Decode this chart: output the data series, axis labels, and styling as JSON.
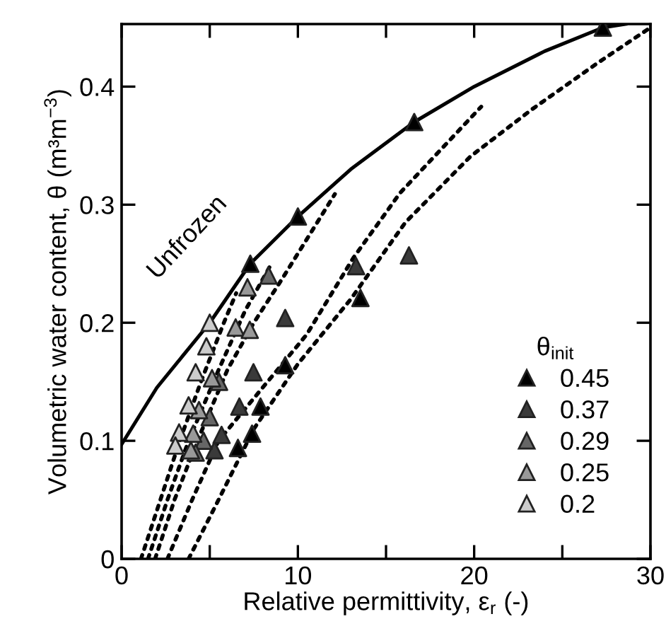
{
  "chart_data": {
    "type": "scatter",
    "xlabel": "Relative permittivity, ε$_{r}$ (-)",
    "ylabel": "Volumetric water content, θ (m³m$^{−3}$)",
    "legend_title": "θ$_{init}$",
    "xlim": [
      0,
      30
    ],
    "ylim": [
      0,
      0.453
    ],
    "xticks": [
      0,
      {
        "value": 5,
        "label": null
      },
      10,
      {
        "value": 15,
        "label": null
      },
      20,
      {
        "value": 25,
        "label": null
      },
      30
    ],
    "yticks": [
      0,
      0.1,
      0.2,
      0.3,
      0.4
    ],
    "grid": false,
    "legend": "lower right",
    "marker": "triangle",
    "annotations": [
      "Unfrozen"
    ],
    "series": [
      {
        "type": "line",
        "marker": "none",
        "color": "#000000",
        "line_style": "solid",
        "x": [
          0,
          2,
          5,
          7.3,
          10,
          13,
          16.6,
          20,
          24,
          27.3,
          28.6
        ],
        "values": [
          0.097,
          0.145,
          0.2,
          0.25,
          0.29,
          0.33,
          0.37,
          0.4,
          0.43,
          0.45,
          0.453
        ]
      },
      {
        "type": "line",
        "color": "#000000",
        "line_style": "dotted",
        "marker": "none",
        "x": [
          3.8,
          5.5,
          7.5,
          10,
          13,
          16.1,
          19.8,
          23.3,
          27,
          30
        ],
        "values": [
          0,
          0.05,
          0.11,
          0.165,
          0.22,
          0.285,
          0.341,
          0.381,
          0.42,
          0.45
        ]
      },
      {
        "type": "line",
        "color": "#000000",
        "line_style": "dotted",
        "marker": "none",
        "x": [
          2.6,
          4,
          5.5,
          8,
          10.5,
          13.15,
          15.8,
          20.4
        ],
        "values": [
          0,
          0.05,
          0.1,
          0.145,
          0.19,
          0.255,
          0.31,
          0.383
        ]
      },
      {
        "type": "line",
        "color": "#000000",
        "line_style": "dotted",
        "marker": "none",
        "x": [
          1.9,
          3,
          4.3,
          6,
          7.5,
          9.1,
          12.1
        ],
        "values": [
          0,
          0.05,
          0.1,
          0.16,
          0.2,
          0.237,
          0.309
        ]
      },
      {
        "type": "line",
        "color": "#000000",
        "line_style": "dotted",
        "marker": "none",
        "x": [
          1.5,
          2.6,
          3.8,
          5.5,
          7,
          8.5
        ],
        "values": [
          0,
          0.05,
          0.1,
          0.16,
          0.21,
          0.25
        ]
      },
      {
        "type": "line",
        "color": "#000000",
        "line_style": "dotted",
        "marker": "none",
        "x": [
          1.1,
          2.2,
          3.3,
          4.5,
          5.8,
          6.5
        ],
        "values": [
          0,
          0.05,
          0.1,
          0.15,
          0.2,
          0.225
        ]
      },
      {
        "name": "0.45",
        "color": "#000000",
        "x": [
          7.3,
          10,
          16.6,
          27.3,
          9.28,
          7.88,
          7.4,
          6.6,
          13.55
        ],
        "values": [
          0.25,
          0.29,
          0.37,
          0.45,
          0.164,
          0.129,
          0.106,
          0.094,
          0.221
        ]
      },
      {
        "name": "0.37",
        "color": "#3a3a3a",
        "x": [
          9.28,
          7.48,
          6.68,
          5.67,
          5.27,
          13.3,
          16.3
        ],
        "values": [
          0.204,
          0.158,
          0.129,
          0.105,
          0.092,
          0.248,
          0.257
        ]
      },
      {
        "name": "0.29",
        "color": "#666666",
        "x": [
          8.34,
          5.53,
          5.0,
          4.65,
          4.2
        ],
        "values": [
          0.24,
          0.15,
          0.12,
          0.1,
          0.09
        ]
      },
      {
        "name": "0.25",
        "color": "#999999",
        "x": [
          7.14,
          6.47,
          7.27,
          5.13,
          4.39,
          4.06,
          3.93
        ],
        "values": [
          0.23,
          0.196,
          0.194,
          0.153,
          0.126,
          0.106,
          0.092
        ]
      },
      {
        "name": "0.2",
        "color": "#cccccc",
        "x": [
          5.0,
          4.81,
          4.2,
          3.8,
          3.26,
          3.05
        ],
        "values": [
          0.2,
          0.18,
          0.158,
          0.13,
          0.107,
          0.096
        ]
      }
    ]
  }
}
